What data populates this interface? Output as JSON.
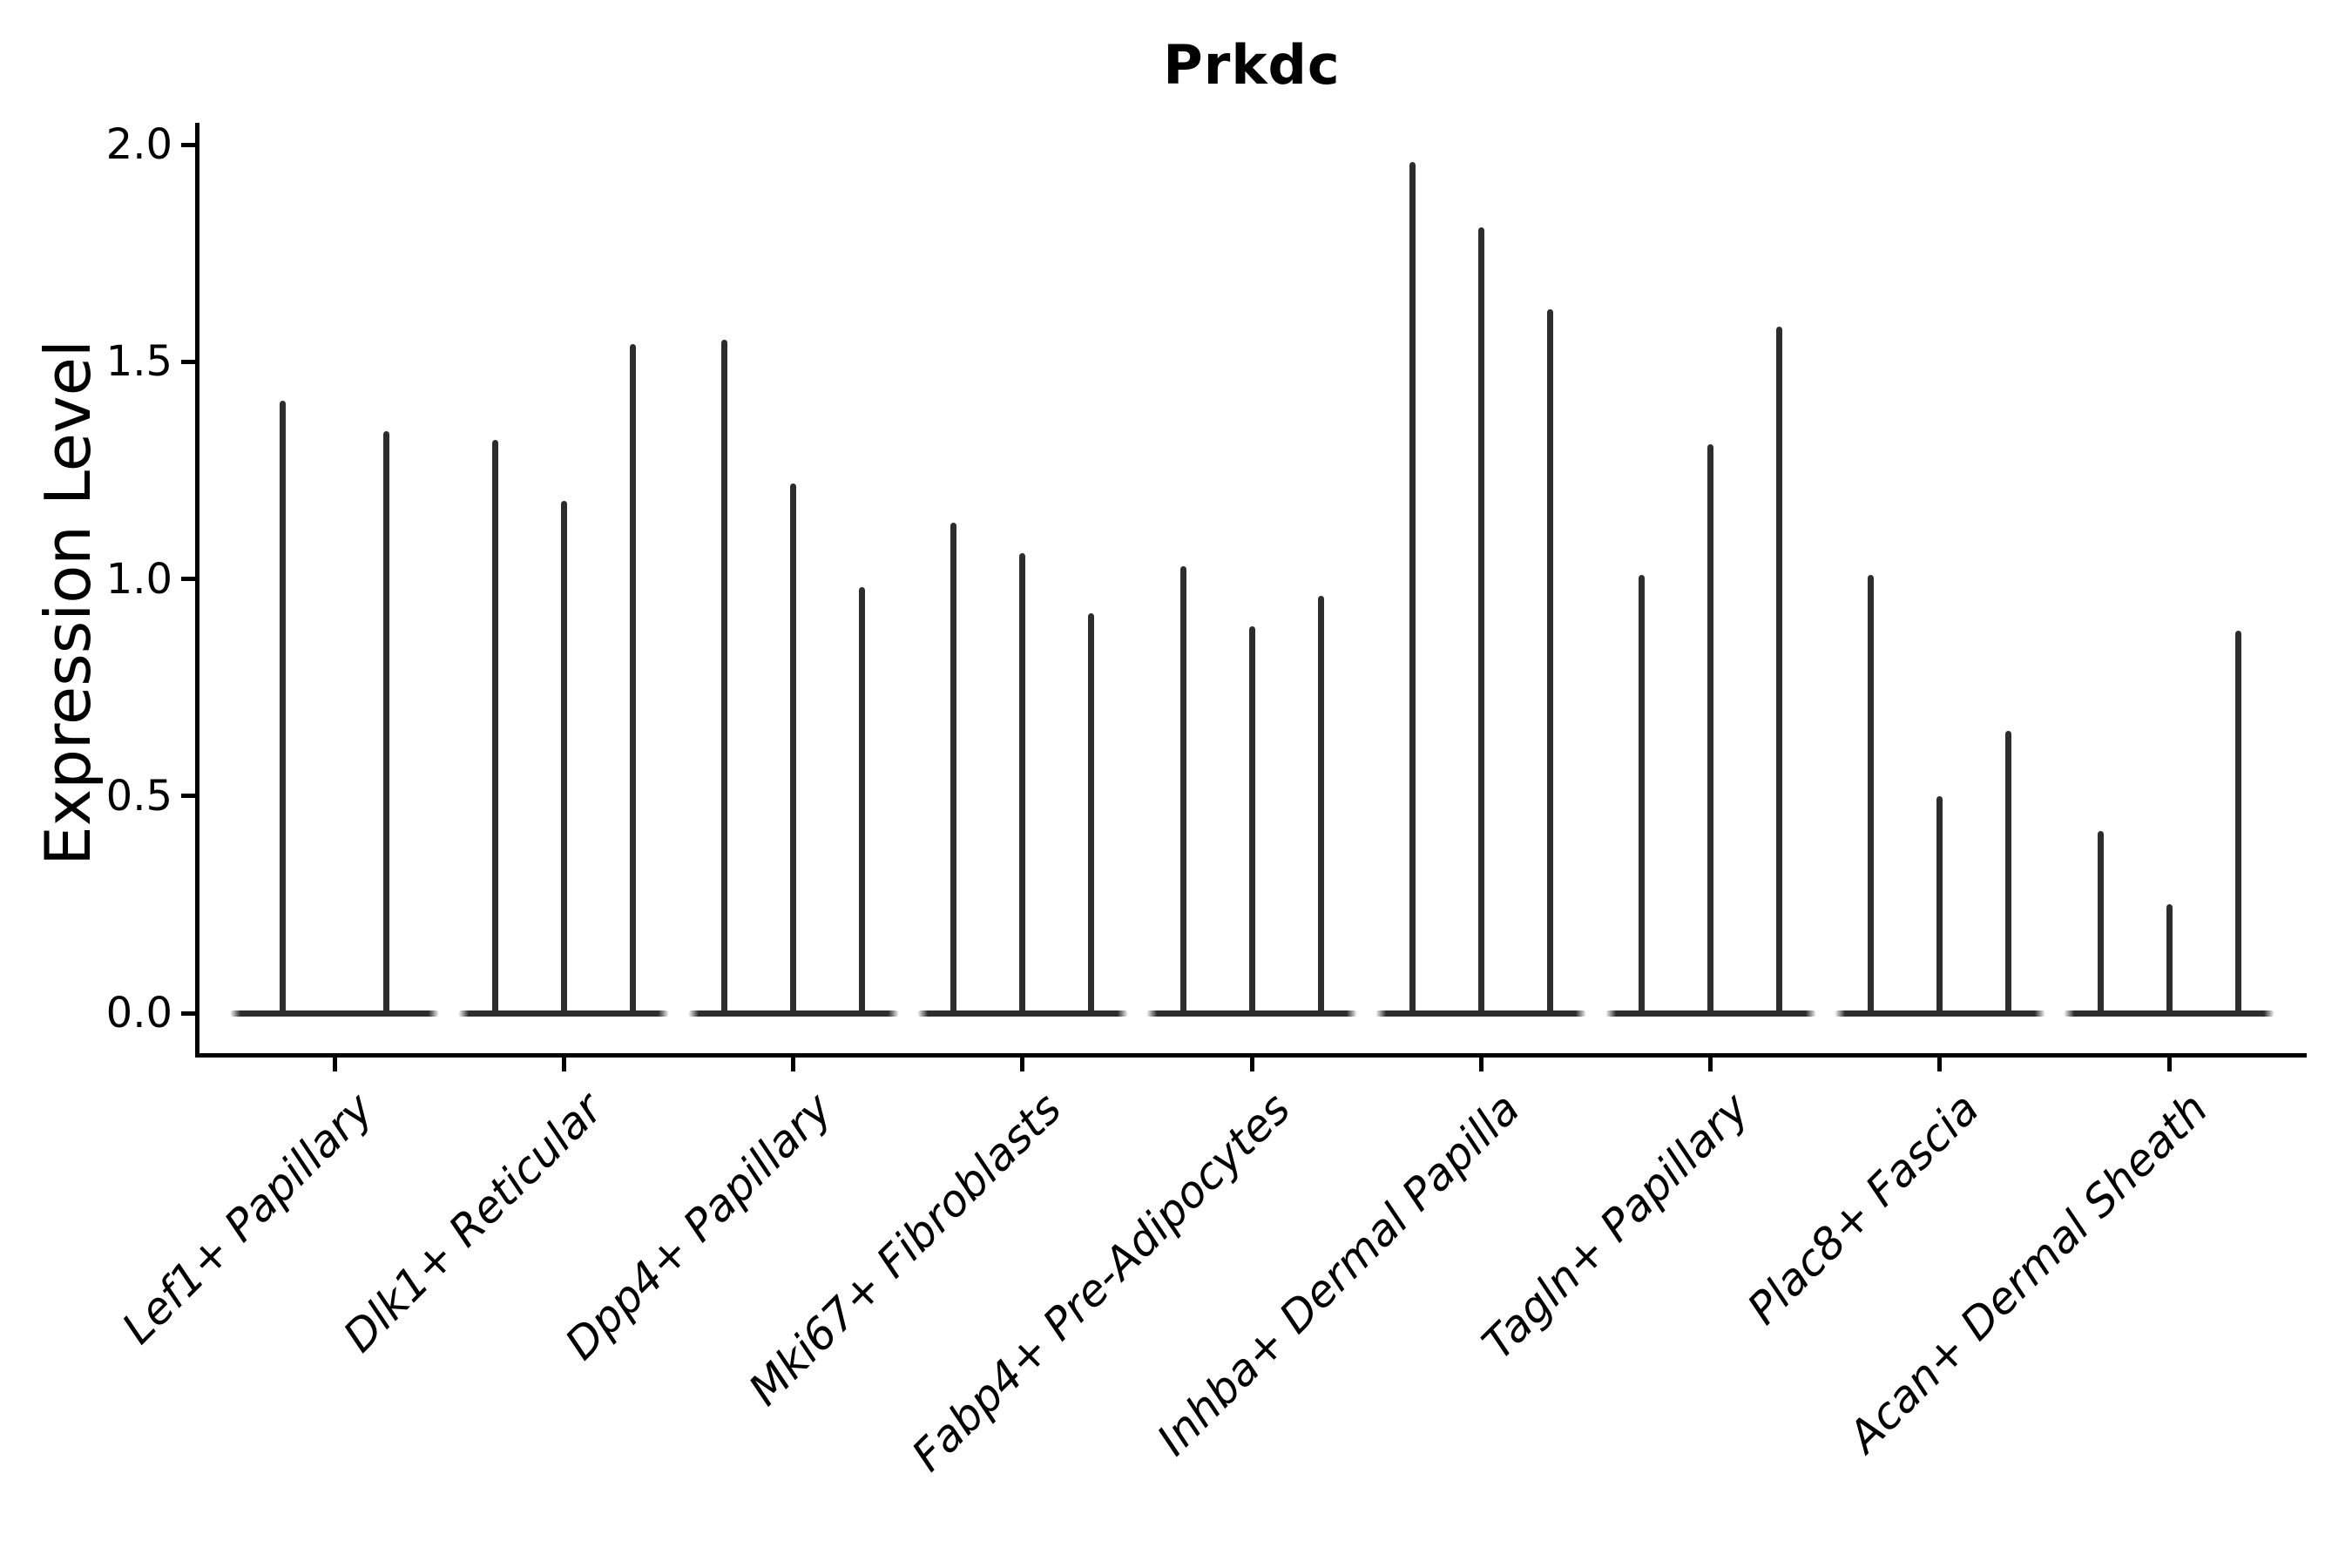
{
  "title": "Prkdc",
  "colors": {
    "violin": "#2d2d2d",
    "axis": "#000000",
    "background": "#ffffff",
    "text": "#000000"
  },
  "chart_data": {
    "type": "violin",
    "title": "Prkdc",
    "xlabel": "",
    "ylabel": "Expression Level",
    "ylim": [
      0,
      2.05
    ],
    "grid": false,
    "legend": "none",
    "yticks": [
      {
        "value": 0.0,
        "label": "0.0"
      },
      {
        "value": 0.5,
        "label": "0.5"
      },
      {
        "value": 1.0,
        "label": "1.0"
      },
      {
        "value": 1.5,
        "label": "1.5"
      },
      {
        "value": 2.0,
        "label": "2.0"
      }
    ],
    "categories": [
      "Lef1+ Papillary",
      "Dlk1+ Reticular",
      "Dpp4+ Papillary",
      "Mki67+ Fibroblasts",
      "Fabp4+ Pre-Adipocytes",
      "Inhba+ Dermal Papilla",
      "Tagln+ Papillary",
      "Plac8+ Fascia",
      "Acan+ Dermal Sheath"
    ],
    "groups": [
      {
        "category": "Lef1+ Papillary",
        "violin_peak_values": [
          1.41,
          1.34
        ]
      },
      {
        "category": "Dlk1+ Reticular",
        "violin_peak_values": [
          1.32,
          1.18,
          1.54
        ]
      },
      {
        "category": "Dpp4+ Papillary",
        "violin_peak_values": [
          1.55,
          1.22,
          0.98
        ]
      },
      {
        "category": "Mki67+ Fibroblasts",
        "violin_peak_values": [
          1.13,
          1.06,
          0.92
        ]
      },
      {
        "category": "Fabp4+ Pre-Adipocytes",
        "violin_peak_values": [
          1.03,
          0.89,
          0.96
        ]
      },
      {
        "category": "Inhba+ Dermal Papilla",
        "violin_peak_values": [
          1.96,
          1.81,
          1.62
        ]
      },
      {
        "category": "Tagln+ Papillary",
        "violin_peak_values": [
          1.01,
          1.31,
          1.58
        ]
      },
      {
        "category": "Plac8+ Fascia",
        "violin_peak_values": [
          1.01,
          0.5,
          0.65
        ]
      },
      {
        "category": "Acan+ Dermal Sheath",
        "violin_peak_values": [
          0.42,
          0.25,
          0.88
        ]
      }
    ],
    "description": "Each category shows thin needle violins; expression concentrated at 0 with flat wide bases on the baseline and thin spikes rising to the maximum expression values."
  }
}
